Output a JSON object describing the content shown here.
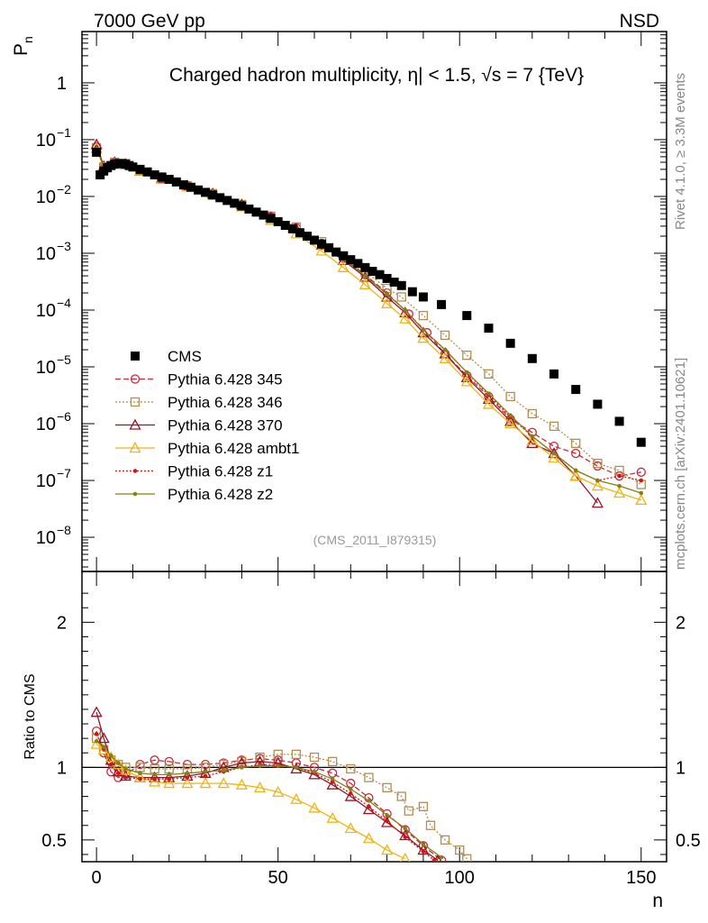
{
  "header": {
    "left": "7000 GeV pp",
    "right": "NSD"
  },
  "side_labels": {
    "rivet": "Rivet 4.1.0, ≥ 3.3M events",
    "mcplots": "mcplots.cern.ch [arXiv:2401.10621]"
  },
  "colors": {
    "cms": "#000000",
    "p345": "#c8283c",
    "p346": "#b48c50",
    "p370": "#961428",
    "ambt1": "#f0b414",
    "z1": "#d21414",
    "z2": "#828214"
  },
  "chart_data": [
    {
      "type": "scatter",
      "panel": "main",
      "title": "Charged hadron multiplicity, η| < 1.5, √s = 7 {TeV}",
      "analysis_tag": "(CMS_2011_I879315)",
      "ylabel": "P_n",
      "yscale": "log",
      "xlim": [
        -4,
        157
      ],
      "ylim": [
        2.5e-09,
        8
      ],
      "yticks": [
        {
          "value": 1e-08,
          "label": "10",
          "exp": "−8"
        },
        {
          "value": 1e-07,
          "label": "10",
          "exp": "−7"
        },
        {
          "value": 1e-06,
          "label": "10",
          "exp": "−6"
        },
        {
          "value": 1e-05,
          "label": "10",
          "exp": "−5"
        },
        {
          "value": 0.0001,
          "label": "10",
          "exp": "−4"
        },
        {
          "value": 0.001,
          "label": "10",
          "exp": "−3"
        },
        {
          "value": 0.01,
          "label": "10",
          "exp": "−2"
        },
        {
          "value": 0.1,
          "label": "10",
          "exp": "−1"
        },
        {
          "value": 1,
          "label": "1",
          "exp": ""
        }
      ],
      "legend": [
        {
          "key": "cms",
          "label": "CMS"
        },
        {
          "key": "p345",
          "label": "Pythia 6.428 345"
        },
        {
          "key": "p346",
          "label": "Pythia 6.428 346"
        },
        {
          "key": "p370",
          "label": "Pythia 6.428 370"
        },
        {
          "key": "ambt1",
          "label": "Pythia 6.428 ambt1"
        },
        {
          "key": "z1",
          "label": "Pythia 6.428 z1"
        },
        {
          "key": "z2",
          "label": "Pythia 6.428 z2"
        }
      ],
      "cms_points": [
        [
          0,
          0.06
        ],
        [
          1,
          0.024
        ],
        [
          2,
          0.028
        ],
        [
          3,
          0.032
        ],
        [
          4,
          0.035
        ],
        [
          5,
          0.037
        ],
        [
          6,
          0.038
        ],
        [
          7,
          0.038
        ],
        [
          8,
          0.037
        ],
        [
          9,
          0.035
        ],
        [
          10,
          0.033
        ],
        [
          12,
          0.03
        ],
        [
          14,
          0.027
        ],
        [
          16,
          0.024
        ],
        [
          18,
          0.022
        ],
        [
          20,
          0.02
        ],
        [
          22,
          0.018
        ],
        [
          24,
          0.016
        ],
        [
          26,
          0.0145
        ],
        [
          28,
          0.013
        ],
        [
          30,
          0.0118
        ],
        [
          32,
          0.0106
        ],
        [
          34,
          0.0095
        ],
        [
          36,
          0.0085
        ],
        [
          38,
          0.0076
        ],
        [
          40,
          0.0068
        ],
        [
          42,
          0.006
        ],
        [
          44,
          0.0053
        ],
        [
          46,
          0.0047
        ],
        [
          48,
          0.0041
        ],
        [
          50,
          0.0036
        ],
        [
          52,
          0.0031
        ],
        [
          54,
          0.0027
        ],
        [
          56,
          0.0023
        ],
        [
          58,
          0.002
        ],
        [
          60,
          0.0017
        ],
        [
          62,
          0.00145
        ],
        [
          64,
          0.00125
        ],
        [
          66,
          0.00105
        ],
        [
          68,
          0.0009
        ],
        [
          70,
          0.00077
        ],
        [
          72,
          0.00066
        ],
        [
          74,
          0.00056
        ],
        [
          76,
          0.00048
        ],
        [
          78,
          0.00042
        ],
        [
          80,
          0.00036
        ],
        [
          82,
          0.00031
        ],
        [
          84,
          0.00027
        ],
        [
          87,
          0.00021
        ],
        [
          90,
          0.00017
        ],
        [
          95,
          0.000125
        ],
        [
          102,
          8e-05
        ],
        [
          108,
          4.8e-05
        ],
        [
          114,
          2.6e-05
        ],
        [
          120,
          1.4e-05
        ],
        [
          126,
          7.5e-06
        ],
        [
          132,
          4e-06
        ],
        [
          138,
          2.2e-06
        ],
        [
          144,
          1.1e-06
        ],
        [
          150,
          4.7e-07
        ]
      ],
      "series": [
        {
          "key": "p345",
          "marker": "circle",
          "dash": "6,3",
          "x": [
            0,
            2,
            5,
            8,
            12,
            18,
            25,
            32,
            40,
            48,
            55,
            62,
            68,
            74,
            80,
            86,
            91,
            96,
            102,
            108,
            114,
            120,
            126,
            132,
            138,
            144,
            150
          ],
          "y": [
            0.075,
            0.034,
            0.04,
            0.038,
            0.029,
            0.021,
            0.0155,
            0.0113,
            0.0072,
            0.0044,
            0.0028,
            0.0015,
            0.00082,
            0.00042,
            0.0002,
            8.5e-05,
            4e-05,
            1.7e-05,
            7e-06,
            3e-06,
            1.2e-06,
            7e-07,
            4e-07,
            3e-07,
            1.8e-07,
            1.2e-07,
            1.4e-07
          ]
        },
        {
          "key": "p346",
          "marker": "square",
          "dash": "2,2",
          "x": [
            0,
            2,
            5,
            8,
            12,
            18,
            25,
            32,
            40,
            48,
            55,
            62,
            68,
            74,
            80,
            84,
            90,
            96,
            102,
            108,
            114,
            120,
            126,
            132,
            138,
            144,
            150
          ],
          "y": [
            0.072,
            0.033,
            0.04,
            0.038,
            0.029,
            0.021,
            0.0155,
            0.0112,
            0.0072,
            0.0045,
            0.0029,
            0.0016,
            0.0009,
            0.00048,
            0.00024,
            0.00017,
            8e-05,
            3.6e-05,
            1.6e-05,
            7.5e-06,
            3e-06,
            1.5e-06,
            9e-07,
            4.5e-07,
            2e-07,
            1.5e-07,
            8.5e-08
          ]
        },
        {
          "key": "p370",
          "marker": "triangle",
          "dash": "",
          "x": [
            0,
            2,
            5,
            8,
            12,
            18,
            25,
            32,
            40,
            48,
            55,
            62,
            68,
            74,
            80,
            85,
            90,
            96,
            102,
            108,
            114,
            120,
            126,
            132,
            138
          ],
          "y": [
            0.082,
            0.034,
            0.04,
            0.037,
            0.028,
            0.021,
            0.0155,
            0.0112,
            0.0072,
            0.0043,
            0.0027,
            0.0014,
            0.00075,
            0.00038,
            0.00017,
            9e-05,
            4e-05,
            1.7e-05,
            6.5e-06,
            2.7e-06,
            1.1e-06,
            4.5e-07,
            3e-07,
            1.2e-07,
            4e-08
          ]
        },
        {
          "key": "ambt1",
          "marker": "triangle",
          "dash": "",
          "x": [
            0,
            2,
            5,
            8,
            12,
            18,
            25,
            32,
            40,
            48,
            55,
            62,
            68,
            74,
            80,
            85,
            90,
            96,
            102,
            108,
            114,
            120,
            126,
            132,
            138,
            144,
            150
          ],
          "y": [
            0.07,
            0.032,
            0.038,
            0.036,
            0.028,
            0.02,
            0.0148,
            0.0106,
            0.0066,
            0.0038,
            0.0022,
            0.0011,
            0.00056,
            0.00028,
            0.00013,
            7e-05,
            3.2e-05,
            1.4e-05,
            5.5e-06,
            2.2e-06,
            1e-06,
            5e-07,
            2.5e-07,
            1.2e-07,
            8e-08,
            6e-08,
            4.5e-08
          ]
        },
        {
          "key": "z1",
          "marker": "dot",
          "dash": "2,2",
          "x": [
            0,
            2,
            5,
            8,
            12,
            18,
            25,
            32,
            40,
            48,
            55,
            62,
            68,
            74,
            80,
            85,
            90,
            96,
            102,
            108,
            114,
            120,
            126,
            132,
            138,
            144,
            150
          ],
          "y": [
            0.074,
            0.033,
            0.039,
            0.036,
            0.027,
            0.02,
            0.015,
            0.0109,
            0.007,
            0.0043,
            0.0027,
            0.0014,
            0.00078,
            0.0004,
            0.00019,
            0.0001,
            4.5e-05,
            2e-05,
            8e-06,
            3.2e-06,
            1.3e-06,
            6e-07,
            3e-07,
            1.5e-07,
            1e-07,
            1.2e-07,
            1e-07
          ]
        },
        {
          "key": "z2",
          "marker": "dot",
          "dash": "",
          "x": [
            0,
            2,
            5,
            8,
            12,
            18,
            25,
            32,
            40,
            48,
            55,
            62,
            68,
            74,
            80,
            85,
            90,
            96,
            102,
            108,
            114,
            120,
            126,
            132,
            138,
            144,
            150
          ],
          "y": [
            0.07,
            0.033,
            0.039,
            0.037,
            0.028,
            0.02,
            0.015,
            0.0109,
            0.007,
            0.0043,
            0.0027,
            0.00145,
            0.00078,
            0.0004,
            0.00019,
            0.0001,
            4.5e-05,
            2e-05,
            8e-06,
            3.4e-06,
            1.4e-06,
            6e-07,
            3e-07,
            1.5e-07,
            1e-07,
            8e-08,
            6e-08
          ]
        }
      ]
    },
    {
      "type": "line",
      "panel": "ratio",
      "ylabel": "Ratio to CMS",
      "xlabel": "n",
      "xlim": [
        -4,
        157
      ],
      "ylim": [
        0.35,
        2.35
      ],
      "xticks": [
        0,
        50,
        100,
        150
      ],
      "yticks": [
        0.5,
        1,
        2
      ],
      "reference": 1,
      "series": [
        {
          "key": "p345",
          "marker": "circle",
          "dash": "6,3",
          "x": [
            0,
            2,
            4,
            6,
            8,
            12,
            16,
            20,
            25,
            30,
            35,
            40,
            45,
            50,
            55,
            60,
            65,
            70,
            75,
            80,
            85,
            90,
            95
          ],
          "y": [
            1.25,
            1.1,
            0.97,
            0.93,
            0.95,
            1.02,
            1.05,
            1.04,
            1.02,
            1.02,
            1.03,
            1.05,
            1.06,
            1.05,
            1.03,
            1.0,
            0.96,
            0.89,
            0.79,
            0.68,
            0.57,
            0.46,
            0.36
          ]
        },
        {
          "key": "p346",
          "marker": "square",
          "dash": "2,2",
          "x": [
            0,
            2,
            4,
            6,
            8,
            12,
            16,
            20,
            25,
            30,
            35,
            40,
            45,
            50,
            55,
            60,
            65,
            70,
            75,
            80,
            84,
            86,
            90,
            92,
            96,
            100,
            102
          ],
          "y": [
            1.2,
            1.12,
            1.05,
            1.02,
            1.0,
            1.0,
            0.99,
            0.99,
            0.99,
            1.0,
            1.02,
            1.04,
            1.07,
            1.09,
            1.09,
            1.07,
            1.04,
            0.99,
            0.93,
            0.86,
            0.8,
            0.7,
            0.73,
            0.6,
            0.5,
            0.43,
            0.37
          ]
        },
        {
          "key": "p370",
          "marker": "triangle",
          "dash": "",
          "x": [
            0,
            2,
            4,
            6,
            8,
            12,
            16,
            20,
            25,
            30,
            35,
            40,
            45,
            50,
            55,
            60,
            65,
            70,
            75,
            80,
            85,
            90,
            94
          ],
          "y": [
            1.38,
            1.2,
            1.05,
            0.97,
            0.94,
            0.93,
            0.93,
            0.93,
            0.94,
            0.96,
            1.0,
            1.03,
            1.04,
            1.03,
            0.99,
            0.95,
            0.88,
            0.8,
            0.71,
            0.62,
            0.53,
            0.43,
            0.36
          ]
        },
        {
          "key": "ambt1",
          "marker": "triangle",
          "dash": "",
          "x": [
            0,
            2,
            4,
            6,
            8,
            12,
            16,
            20,
            25,
            30,
            35,
            40,
            45,
            50,
            55,
            60,
            65,
            70,
            75,
            80,
            85
          ],
          "y": [
            1.16,
            1.12,
            1.07,
            1.02,
            0.98,
            0.93,
            0.9,
            0.89,
            0.89,
            0.89,
            0.89,
            0.88,
            0.86,
            0.83,
            0.78,
            0.72,
            0.65,
            0.58,
            0.51,
            0.43,
            0.37
          ]
        },
        {
          "key": "z1",
          "marker": "dot",
          "dash": "2,2",
          "x": [
            0,
            2,
            4,
            6,
            8,
            12,
            16,
            20,
            25,
            30,
            35,
            40,
            45,
            50,
            55,
            60,
            65,
            70,
            75,
            80,
            85,
            90,
            93
          ],
          "y": [
            1.23,
            1.13,
            1.02,
            0.96,
            0.93,
            0.92,
            0.92,
            0.92,
            0.93,
            0.94,
            0.97,
            1.0,
            1.02,
            1.02,
            1.0,
            0.96,
            0.9,
            0.82,
            0.73,
            0.63,
            0.52,
            0.42,
            0.36
          ]
        },
        {
          "key": "z2",
          "marker": "dot",
          "dash": "",
          "x": [
            0,
            2,
            4,
            6,
            8,
            12,
            16,
            20,
            25,
            30,
            35,
            40,
            45,
            50,
            55,
            60,
            65,
            70,
            75,
            80,
            85,
            90,
            95
          ],
          "y": [
            1.18,
            1.14,
            1.08,
            1.03,
            0.99,
            0.96,
            0.95,
            0.95,
            0.96,
            0.97,
            0.98,
            1.0,
            1.01,
            1.01,
            1.0,
            0.97,
            0.92,
            0.85,
            0.77,
            0.67,
            0.58,
            0.47,
            0.38
          ]
        }
      ]
    }
  ]
}
